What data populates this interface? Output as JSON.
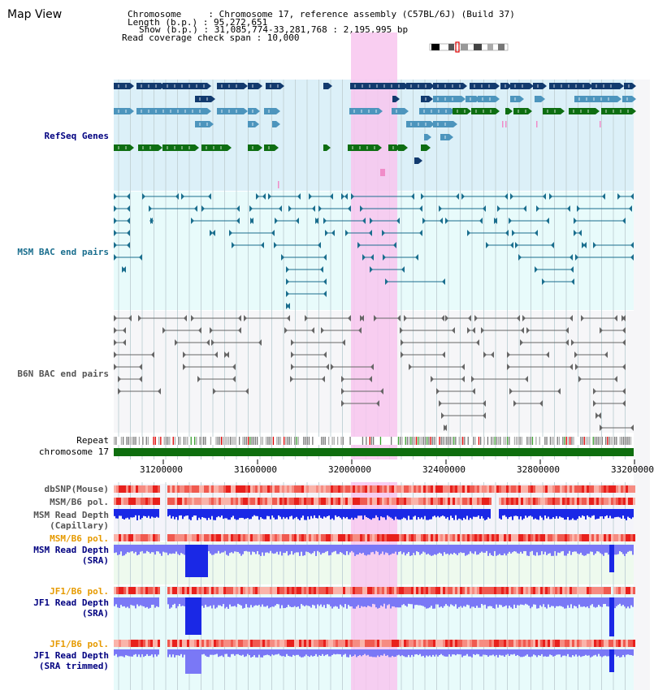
{
  "page_title": "Map View",
  "header": {
    "line1": "Chromosome     : Chromosome 17, reference assembly (C57BL/6J) (Build 37)",
    "line2": "Length (b.p.) : 95,272,651",
    "line3": "Show (b.p.) : 31,085,774-33,281,768 : 2,195,995 bp",
    "line4": "Read coverage check span : 10,000"
  },
  "tracks": {
    "refseq": "RefSeq Genes",
    "msm_bac": "MSM BAC end pairs",
    "b6n_bac": "B6N BAC end pairs",
    "repeat": "Repeat",
    "chromosome": "chromosome 17",
    "dbsnp": "dbSNP(Mouse)",
    "msm_b6_pol_cap": "MSM/B6 pol.",
    "msm_depth_cap_1": "MSM Read Depth",
    "msm_depth_cap_2": "(Capillary)",
    "msm_b6_pol_sra": "MSM/B6 pol.",
    "msm_depth_sra_1": "MSM Read Depth",
    "msm_depth_sra_2": "(SRA)",
    "jf1_b6_pol_1": "JF1/B6 pol.",
    "jf1_depth_1": "JF1 Read Depth",
    "jf1_depth_1b": "(SRA)",
    "jf1_b6_pol_2": "JF1/B6 pol.",
    "jf1_depth_2": "JF1 Read Depth",
    "jf1_depth_2b": "(SRA trimmed)"
  },
  "axis": {
    "ticks": [
      "31200000",
      "31600000",
      "32000000",
      "32400000",
      "32800000",
      "33200000"
    ]
  },
  "colors": {
    "refseq_dark": "#123a6e",
    "refseq_light": "#4d95bd",
    "refseq_green": "#0e6e12",
    "msm_bac": "#1a6e8e",
    "b6n_bac": "#666666",
    "highlight": "#f8c6ee",
    "chrom_bar": "#0e6e0e",
    "depth_dark": "#1a28e6",
    "depth_light": "#7a78f6",
    "label_navy": "#000080",
    "label_teal": "#1a6e8e",
    "label_orange": "#e69a00"
  }
}
